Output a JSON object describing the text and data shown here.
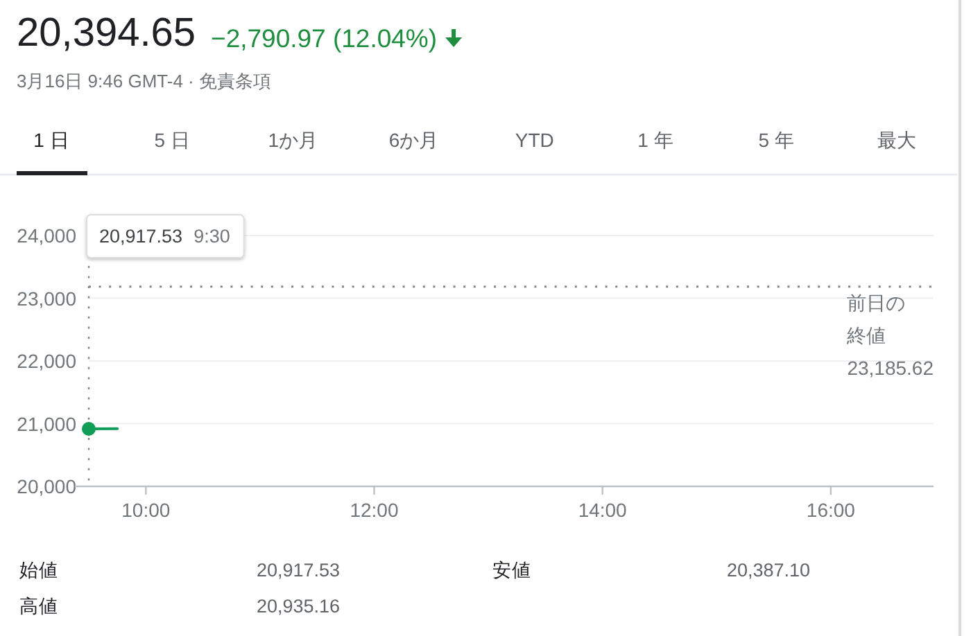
{
  "chart_data": {
    "type": "line",
    "title": "20,394.65",
    "subtitle": "−2,790.97 (12.04%)",
    "x": [
      9.5,
      9.75
    ],
    "series": [
      {
        "color": "#0f9d58",
        "values": [
          20917.53,
          20920
        ]
      },
      {
        "type": "scatter",
        "marker": "circle",
        "color": "#0f9d58",
        "x": [
          9.5
        ],
        "values": [
          20917.53
        ]
      }
    ],
    "xlim": [
      9.5,
      16.9
    ],
    "xticks": [
      {
        "value": 10,
        "label": "10:00"
      },
      {
        "value": 12,
        "label": "12:00"
      },
      {
        "value": 14,
        "label": "14:00"
      },
      {
        "value": 16,
        "label": "16:00"
      }
    ],
    "ylim": [
      20000,
      24000
    ],
    "yticks": [
      {
        "value": 20000,
        "label": "20,000"
      },
      {
        "value": 21000,
        "label": "21,000"
      },
      {
        "value": 22000,
        "label": "22,000"
      },
      {
        "value": 23000,
        "label": "23,000"
      },
      {
        "value": 24000,
        "label": "24,000"
      }
    ],
    "grid": "y",
    "ref_lines": [
      {
        "axis": "y",
        "value": 23185.62,
        "label": "前日の終値 23,185.62",
        "color": "#80868b",
        "line_style": "dotted"
      },
      {
        "axis": "x",
        "value": 9.5,
        "color": "#80868b",
        "line_style": "dotted"
      }
    ],
    "annotations": [
      "3月16日 9:46 GMT-4 · 免責条項",
      "1 日",
      "5 日",
      "1か月",
      "6か月",
      "YTD",
      "1 年",
      "5 年",
      "最大",
      "20,917.53 9:30",
      "始値",
      "20,917.53",
      "安値",
      "20,387.10",
      "高値",
      "20,935.16"
    ]
  }
}
